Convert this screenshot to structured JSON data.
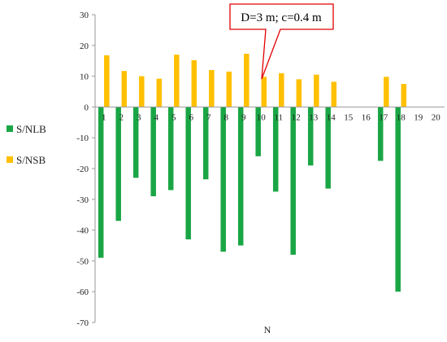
{
  "chart_data": {
    "type": "bar",
    "title": "",
    "xlabel": "N",
    "ylabel": "",
    "ylim": [
      -70,
      30
    ],
    "ytick_step": 10,
    "categories": [
      "1",
      "2",
      "3",
      "4",
      "5",
      "6",
      "7",
      "8",
      "9",
      "10",
      "11",
      "12",
      "13",
      "14",
      "15",
      "16",
      "17",
      "18",
      "19",
      "20"
    ],
    "series": [
      {
        "name": "S/NLB",
        "color": "#1aa645",
        "values": [
          -49,
          -37,
          -23,
          -29,
          -27,
          -43,
          -23.5,
          -47,
          -45,
          -16,
          -27.5,
          -48,
          -19,
          -26.5,
          null,
          null,
          -17.5,
          -60,
          null,
          null
        ]
      },
      {
        "name": "S/NSB",
        "color": "#ffc000",
        "values": [
          16.8,
          11.7,
          10,
          9.2,
          17,
          15.2,
          12,
          11.5,
          17.3,
          9.8,
          11,
          9,
          10.5,
          8.2,
          null,
          null,
          9.8,
          7.5,
          null,
          null
        ]
      }
    ],
    "legend_placement": "left",
    "grid": false,
    "annotation": {
      "text": "D=3 m; c=0.4 m",
      "target_category": "10",
      "target_series": "S/NSB",
      "border_color": "#e00000"
    }
  }
}
